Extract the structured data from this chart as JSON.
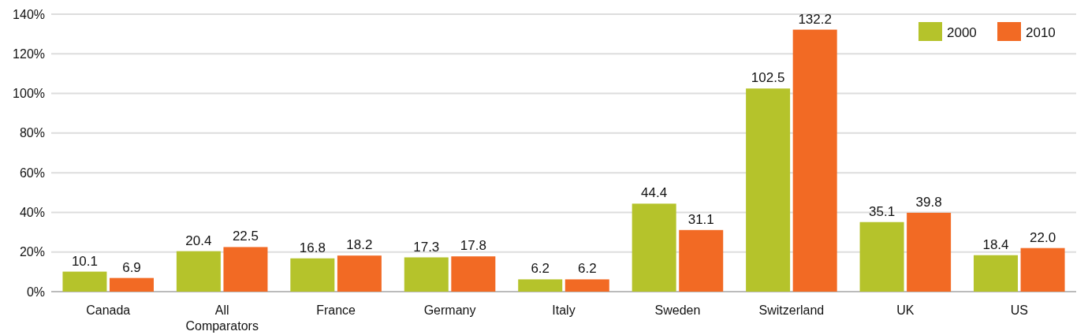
{
  "chart_data": {
    "type": "bar",
    "categories": [
      "Canada",
      "All Comparators",
      "France",
      "Germany",
      "Italy",
      "Sweden",
      "Switzerland",
      "UK",
      "US"
    ],
    "series": [
      {
        "name": "2000",
        "color": "#b5c32b",
        "values": [
          10.1,
          20.4,
          16.8,
          17.3,
          6.2,
          44.4,
          102.5,
          35.1,
          18.4
        ],
        "value_labels": [
          "10.1",
          "20.4",
          "16.8",
          "17.3",
          "6.2",
          "44.4",
          "102.5",
          "35.1",
          "18.4"
        ]
      },
      {
        "name": "2010",
        "color": "#f26a24",
        "values": [
          6.9,
          22.5,
          18.2,
          17.8,
          6.2,
          31.1,
          132.2,
          39.8,
          22.0
        ],
        "value_labels": [
          "6.9",
          "22.5",
          "18.2",
          "17.8",
          "6.2",
          "31.1",
          "132.2",
          "39.8",
          "22.0"
        ]
      }
    ],
    "ylim": [
      0,
      140
    ],
    "yticks": [
      {
        "value": 0,
        "label": "0%"
      },
      {
        "value": 20,
        "label": "20%"
      },
      {
        "value": 40,
        "label": "40%"
      },
      {
        "value": 60,
        "label": "60%"
      },
      {
        "value": 80,
        "label": "80%"
      },
      {
        "value": 100,
        "label": "100%"
      },
      {
        "value": 120,
        "label": "120%"
      },
      {
        "value": 140,
        "label": "140%"
      }
    ],
    "grid": "y",
    "legend": "top right"
  }
}
